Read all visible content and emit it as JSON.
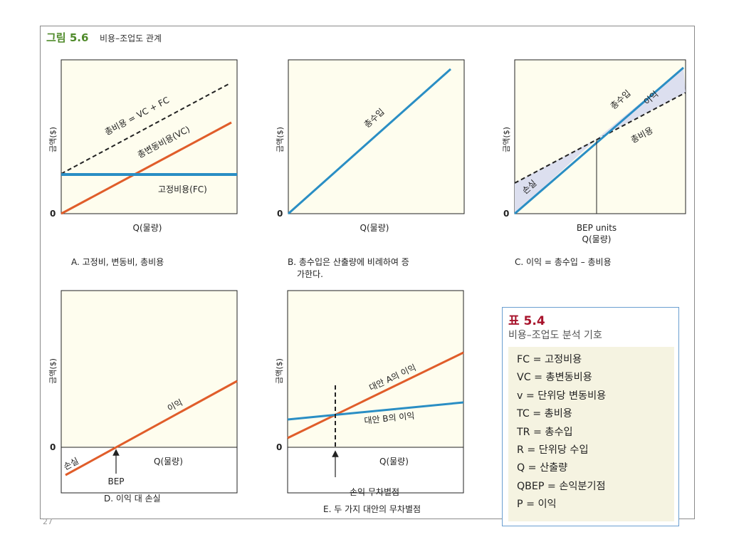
{
  "figure": {
    "label": "그림 5.6",
    "title": "비용–조업도 관계",
    "page_number": "27"
  },
  "colors": {
    "panel_bg": "#fefdee",
    "total_revenue": "#2a8ec4",
    "variable_cost": "#e05d2a",
    "shade": "#dcdfef",
    "table_border": "#6a9fd0",
    "table_title": "#a8142c",
    "table_body_bg": "#f5f3e1",
    "figure_label": "#4f8a2a"
  },
  "panels": {
    "a": {
      "y_label": "금액($)",
      "x_label": "Q(물량)",
      "origin": "0",
      "total_cost_label": "총비용 = VC + FC",
      "variable_cost_label": "총변동비용(VC)",
      "fixed_cost_label": "고정비용(FC)",
      "caption": "A. 고정비, 변동비, 총비용"
    },
    "b": {
      "y_label": "금액($)",
      "x_label": "Q(물량)",
      "origin": "0",
      "revenue_label": "총수입",
      "caption_line1": "B. 총수입은 산출량에 비례하여 증",
      "caption_line2": "가한다."
    },
    "c": {
      "y_label": "금액($)",
      "origin": "0",
      "bep_label": "BEP units",
      "x_label": "Q(물량)",
      "revenue_label": "총수입",
      "profit_label": "이익",
      "cost_label": "총비용",
      "loss_label": "손실",
      "caption": "C. 이익 = 총수입 – 총비용"
    },
    "d": {
      "y_label": "금액($)",
      "origin": "0",
      "profit_label": "이익",
      "loss_label": "손실",
      "x_label": "Q(물량)",
      "bep_label": "BEP",
      "caption": "D. 이익 대 손실"
    },
    "e": {
      "y_label": "금액($)",
      "origin": "0",
      "alt_a_label": "대안 A의 이익",
      "alt_b_label": "대안 B의 이익",
      "x_label": "Q(물량)",
      "indifference_label": "손익 무차별점",
      "caption": "E. 두 가지 대안의 무차별점"
    }
  },
  "table": {
    "title": "표 5.4",
    "subtitle": "비용–조업도 분석 기호",
    "rows": [
      "FC = 고정비용",
      "VC = 총변동비용",
      "v = 단위당 변동비용",
      "TC = 총비용",
      "TR = 총수입",
      "R = 단위당 수입",
      "Q = 산출량",
      "QBEP = 손익분기점",
      "P = 이익"
    ]
  }
}
